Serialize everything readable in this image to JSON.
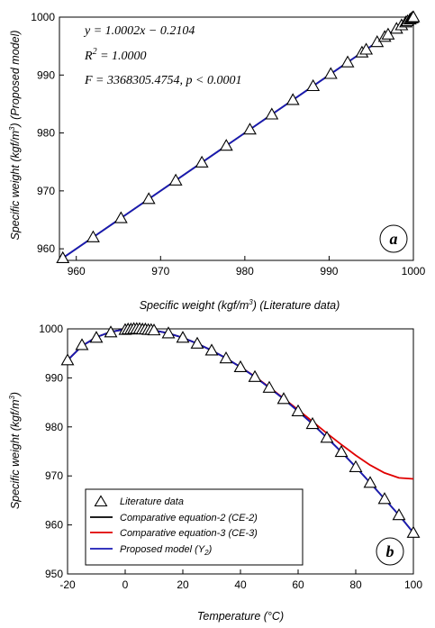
{
  "colors": {
    "data_markers": "#000000",
    "ce2": "#000000",
    "ce3": "#e00000",
    "proposed": "#1a1ab5"
  },
  "chart_data": [
    {
      "type": "scatter",
      "panel_label": "a",
      "xlabel_parts": [
        "Specific weight (kgf/m",
        "3",
        ") (Literature data)"
      ],
      "ylabel_parts": [
        "Specific weight (kgf/m",
        "3",
        ") (Proposed model)"
      ],
      "xlim": [
        958,
        1000
      ],
      "ylim": [
        958,
        1000
      ],
      "xticks": [
        960,
        970,
        980,
        990,
        1000
      ],
      "yticks": [
        960,
        970,
        980,
        990,
        1000
      ],
      "grid": false,
      "annotations": {
        "eq1": "y = 1.0002x − 0.2104",
        "r2_pre": "R",
        "r2_sup": "2",
        "r2_post": " = 1.0000",
        "ftest": "F = 3368305.4754, p < 0.0001"
      },
      "series": [
        {
          "marker": "triangle",
          "x": [
            958.4,
            962.0,
            965.3,
            968.6,
            971.8,
            974.9,
            977.8,
            980.6,
            983.2,
            985.7,
            988.1,
            990.2,
            992.2,
            993.9,
            994.4,
            995.7,
            996.6,
            997.0,
            998.0,
            998.6,
            999.1,
            999.3,
            999.6,
            999.8,
            999.9,
            1000.0
          ],
          "y": [
            958.4,
            962.0,
            965.3,
            968.6,
            971.8,
            974.9,
            977.8,
            980.6,
            983.2,
            985.7,
            988.1,
            990.2,
            992.2,
            993.9,
            994.4,
            995.7,
            996.6,
            997.0,
            998.0,
            998.6,
            999.1,
            999.3,
            999.6,
            999.8,
            999.9,
            1000.0
          ]
        },
        {
          "style": "line",
          "x": [
            958.4,
            1000.0
          ],
          "y": [
            958.4,
            1000.0
          ]
        }
      ]
    },
    {
      "type": "line",
      "panel_label": "b",
      "xlabel": "Temperature (°C)",
      "ylabel_parts": [
        "Specific weight (kgf/m",
        "3",
        ")"
      ],
      "xlim": [
        -20,
        100
      ],
      "ylim": [
        950,
        1000
      ],
      "xticks": [
        -20,
        0,
        20,
        40,
        60,
        80,
        100
      ],
      "yticks": [
        950,
        960,
        970,
        980,
        990,
        1000
      ],
      "grid": false,
      "legend": {
        "position": "bottom-left",
        "entries": [
          "Literature data",
          "Comparative equation-2 (CE-2)",
          "Comparative equation-3 (CE-3)",
          "Proposed model (Y",
          "2",
          ")"
        ]
      },
      "literature_data": {
        "name": "Literature data",
        "x": [
          -20,
          -15,
          -10,
          -5,
          0,
          1,
          2,
          3,
          4,
          5,
          6,
          7,
          8,
          9,
          10,
          15,
          20,
          25,
          30,
          35,
          40,
          45,
          50,
          55,
          60,
          65,
          70,
          75,
          80,
          85,
          90,
          95,
          100
        ],
        "y": [
          993.6,
          996.7,
          998.2,
          999.3,
          999.8,
          999.9,
          999.9,
          1000.0,
          1000.0,
          1000.0,
          999.9,
          999.9,
          999.8,
          999.8,
          999.7,
          999.1,
          998.2,
          997.0,
          995.6,
          994.0,
          992.2,
          990.2,
          988.0,
          985.7,
          983.2,
          980.6,
          977.8,
          974.9,
          971.8,
          968.6,
          965.3,
          962.0,
          958.4
        ]
      },
      "series": [
        {
          "name": "Comparative equation-2 (CE-2)",
          "x": [
            -20,
            -15,
            -10,
            -5,
            0,
            5,
            10,
            15,
            20,
            25,
            30,
            35,
            40,
            45,
            50,
            55,
            60,
            65,
            70,
            75,
            80,
            85,
            90,
            95,
            100
          ],
          "y": [
            993.6,
            996.5,
            998.3,
            999.4,
            999.9,
            1000.0,
            999.7,
            999.1,
            998.2,
            997.0,
            995.6,
            994.0,
            992.2,
            990.2,
            988.0,
            985.7,
            983.2,
            980.6,
            977.8,
            974.9,
            971.8,
            968.6,
            965.3,
            962.0,
            958.4
          ]
        },
        {
          "name": "Comparative equation-3 (CE-3)",
          "x": [
            -20,
            -15,
            -10,
            -5,
            0,
            5,
            10,
            15,
            20,
            25,
            30,
            35,
            40,
            45,
            50,
            55,
            60,
            65,
            70,
            75,
            80,
            85,
            90,
            95,
            100
          ],
          "y": [
            993.6,
            996.5,
            998.3,
            999.4,
            999.9,
            1000.0,
            999.7,
            999.1,
            998.2,
            997.0,
            995.6,
            994.0,
            992.2,
            990.3,
            988.1,
            985.8,
            983.5,
            981.1,
            978.7,
            976.4,
            974.2,
            972.2,
            970.6,
            969.6,
            969.4
          ]
        },
        {
          "name": "Proposed model (Y2)",
          "x": [
            -20,
            -15,
            -10,
            -5,
            0,
            5,
            10,
            15,
            20,
            25,
            30,
            35,
            40,
            45,
            50,
            55,
            60,
            65,
            70,
            75,
            80,
            85,
            90,
            95,
            100
          ],
          "y": [
            993.6,
            996.5,
            998.3,
            999.4,
            999.9,
            1000.0,
            999.7,
            999.1,
            998.2,
            997.0,
            995.6,
            994.0,
            992.2,
            990.2,
            988.0,
            985.7,
            983.2,
            980.6,
            977.8,
            974.9,
            971.8,
            968.6,
            965.3,
            962.0,
            958.4
          ]
        }
      ]
    }
  ]
}
